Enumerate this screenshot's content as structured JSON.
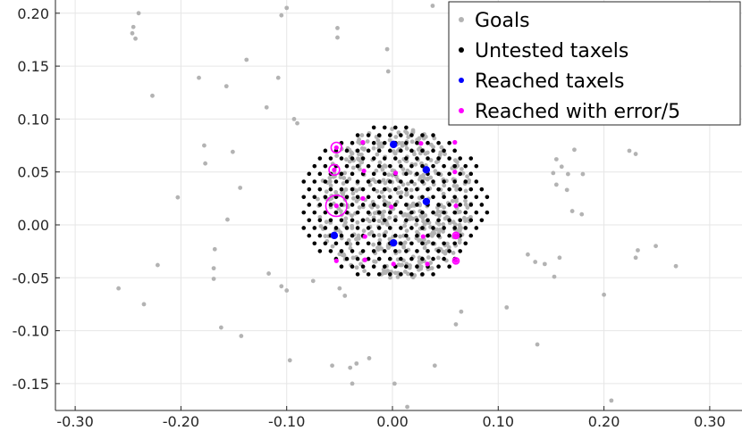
{
  "chart_data": {
    "type": "scatter",
    "title": "",
    "xlabel": "",
    "ylabel": "",
    "xlim": [
      -0.32,
      0.33
    ],
    "ylim": [
      -0.175,
      0.21
    ],
    "grid": true,
    "legend_position": "top-right",
    "x_ticks": [
      -0.3,
      -0.2,
      -0.1,
      0.0,
      0.1,
      0.2,
      0.3
    ],
    "x_tick_labels": [
      "-0.30",
      "-0.20",
      "-0.10",
      "0.00",
      "0.10",
      "0.20",
      "0.30"
    ],
    "y_ticks": [
      0.2,
      0.15,
      0.1,
      0.05,
      0.0,
      -0.05,
      -0.1,
      -0.15
    ],
    "y_tick_labels": [
      "0.20",
      "0.15",
      "0.10",
      "0.05",
      "0.00",
      "-0.05",
      "-0.10",
      "-0.15"
    ],
    "colors": {
      "goals": "#b3b3b3",
      "untested": "#000000",
      "reached": "#0000ff",
      "error": "#ff00ff",
      "grid": "#e6e6e6"
    },
    "legend": [
      "Goals",
      "Untested taxels",
      "Reached taxels",
      "Reached with error/5"
    ],
    "series": [
      {
        "name": "Goals",
        "points": [
          [
            -0.24,
            0.2
          ],
          [
            -0.245,
            0.187
          ],
          [
            -0.246,
            0.181
          ],
          [
            -0.243,
            0.176
          ],
          [
            -0.1,
            0.205
          ],
          [
            -0.105,
            0.198
          ],
          [
            -0.052,
            0.186
          ],
          [
            -0.052,
            0.177
          ],
          [
            -0.005,
            0.166
          ],
          [
            -0.138,
            0.156
          ],
          [
            -0.183,
            0.139
          ],
          [
            -0.157,
            0.131
          ],
          [
            -0.108,
            0.139
          ],
          [
            -0.004,
            0.145
          ],
          [
            -0.227,
            0.122
          ],
          [
            -0.119,
            0.111
          ],
          [
            -0.093,
            0.1
          ],
          [
            -0.09,
            0.096
          ],
          [
            -0.178,
            0.075
          ],
          [
            -0.151,
            0.069
          ],
          [
            -0.177,
            0.058
          ],
          [
            -0.144,
            0.035
          ],
          [
            -0.203,
            0.026
          ],
          [
            -0.156,
            0.005
          ],
          [
            -0.168,
            -0.023
          ],
          [
            -0.222,
            -0.038
          ],
          [
            -0.169,
            -0.041
          ],
          [
            -0.117,
            -0.046
          ],
          [
            -0.169,
            -0.051
          ],
          [
            -0.259,
            -0.06
          ],
          [
            -0.105,
            -0.058
          ],
          [
            -0.1,
            -0.062
          ],
          [
            -0.075,
            -0.053
          ],
          [
            -0.05,
            -0.06
          ],
          [
            -0.045,
            -0.067
          ],
          [
            -0.235,
            -0.075
          ],
          [
            -0.162,
            -0.097
          ],
          [
            -0.143,
            -0.105
          ],
          [
            -0.097,
            -0.128
          ],
          [
            -0.034,
            -0.131
          ],
          [
            -0.04,
            -0.135
          ],
          [
            -0.057,
            -0.133
          ],
          [
            -0.038,
            -0.15
          ],
          [
            -0.022,
            -0.126
          ],
          [
            0.038,
            0.207
          ],
          [
            0.06,
            -0.094
          ],
          [
            0.108,
            -0.078
          ],
          [
            0.137,
            -0.113
          ],
          [
            0.153,
            -0.049
          ],
          [
            0.144,
            -0.037
          ],
          [
            0.135,
            -0.035
          ],
          [
            0.158,
            -0.031
          ],
          [
            0.128,
            -0.028
          ],
          [
            0.172,
            0.071
          ],
          [
            0.155,
            0.062
          ],
          [
            0.16,
            0.055
          ],
          [
            0.152,
            0.049
          ],
          [
            0.166,
            0.048
          ],
          [
            0.18,
            0.048
          ],
          [
            0.155,
            0.038
          ],
          [
            0.165,
            0.033
          ],
          [
            0.17,
            0.013
          ],
          [
            0.179,
            0.01
          ],
          [
            0.224,
            0.07
          ],
          [
            0.23,
            0.067
          ],
          [
            0.2,
            -0.066
          ],
          [
            0.207,
            -0.166
          ],
          [
            0.232,
            -0.024
          ],
          [
            0.249,
            -0.02
          ],
          [
            0.268,
            -0.039
          ],
          [
            0.23,
            -0.031
          ],
          [
            0.002,
            -0.15
          ],
          [
            0.014,
            -0.172
          ],
          [
            0.04,
            -0.133
          ],
          [
            0.065,
            -0.082
          ]
        ]
      },
      {
        "name": "Untested taxels"
      },
      {
        "name": "Reached taxels",
        "points": [
          [
            0.001,
            0.076
          ],
          [
            0.032,
            0.052
          ],
          [
            0.032,
            0.022
          ],
          [
            -0.055,
            -0.01
          ],
          [
            0.001,
            -0.017
          ]
        ]
      },
      {
        "name": "Reached with error/5",
        "points": [
          [
            -0.053,
            0.073
          ],
          [
            -0.055,
            0.052
          ],
          [
            -0.053,
            0.018
          ],
          [
            0.06,
            -0.01
          ],
          [
            0.06,
            -0.034
          ],
          [
            -0.028,
            0.078
          ],
          [
            0.027,
            0.077
          ],
          [
            0.059,
            0.078
          ],
          [
            -0.027,
            0.051
          ],
          [
            0.059,
            0.05
          ],
          [
            -0.028,
            0.025
          ],
          [
            0.003,
            0.049
          ],
          [
            -0.001,
            0.017
          ],
          [
            0.06,
            0.018
          ],
          [
            -0.026,
            -0.011
          ],
          [
            0.029,
            -0.011
          ],
          [
            -0.053,
            -0.034
          ],
          [
            -0.026,
            -0.033
          ],
          [
            0.001,
            -0.037
          ],
          [
            0.033,
            -0.037
          ]
        ],
        "error_circle_radius": [
          0.005,
          0.005,
          0.01,
          0.003,
          0.003
        ]
      }
    ]
  }
}
